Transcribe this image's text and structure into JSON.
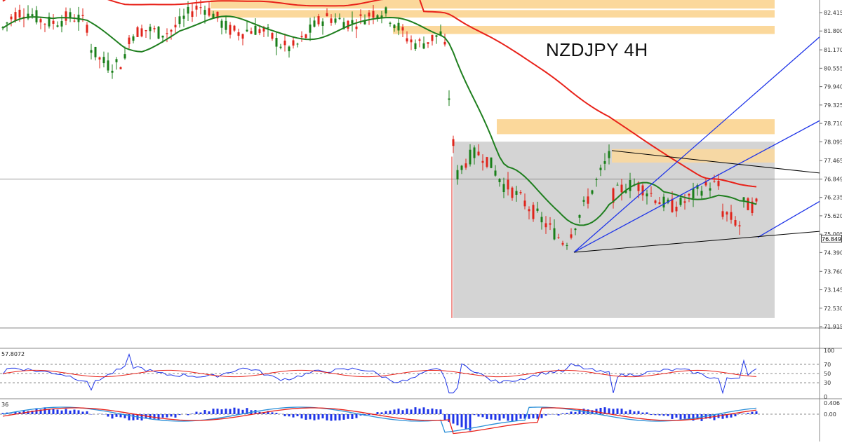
{
  "chart_title": "NZDJPY 4H",
  "colors": {
    "bull_candle": "#1a7f1a",
    "bear_candle": "#e0241b",
    "ma_fast": "#1f7f1f",
    "ma_slow": "#e8221a",
    "supply_zone": "#fbd89b",
    "range_box": "#d4d4d4",
    "channel": "#1f35e8",
    "triangle": "#000000",
    "rsi_line": "#1f35e8",
    "rsi_signal": "#e8221a",
    "macd_hist": "#1f35e8",
    "macd_line": "#2a8fd8",
    "macd_signal": "#e8221a"
  },
  "price_axis": {
    "ticks": [
      "82.415",
      "81.800",
      "81.170",
      "80.555",
      "79.940",
      "79.325",
      "78.710",
      "78.095",
      "77.465",
      "76.849",
      "76.235",
      "75.620",
      "75.005",
      "74.390",
      "73.760",
      "73.145",
      "72.530",
      "71.915"
    ],
    "current_price": "76.849"
  },
  "rsi_panel": {
    "value_label": "57.8072",
    "levels": [
      "100",
      "70",
      "50",
      "30",
      "0"
    ]
  },
  "macd_panel": {
    "value_label": "36",
    "levels": [
      "0.406",
      "0.00"
    ]
  },
  "chart_data": [
    {
      "type": "line",
      "title": "NZDJPY 4H",
      "ylim": [
        71.7,
        82.8
      ],
      "series": [],
      "annotations": [
        "supply zones",
        "range box",
        "rising channel",
        "triangle lines"
      ]
    },
    {
      "type": "line",
      "ylim": [
        0,
        100
      ],
      "levels": [
        70,
        50,
        30
      ],
      "series": [],
      "current_value": 57.8072
    },
    {
      "type": "bar",
      "series": [],
      "levels": [
        0.406,
        0.0
      ]
    }
  ]
}
